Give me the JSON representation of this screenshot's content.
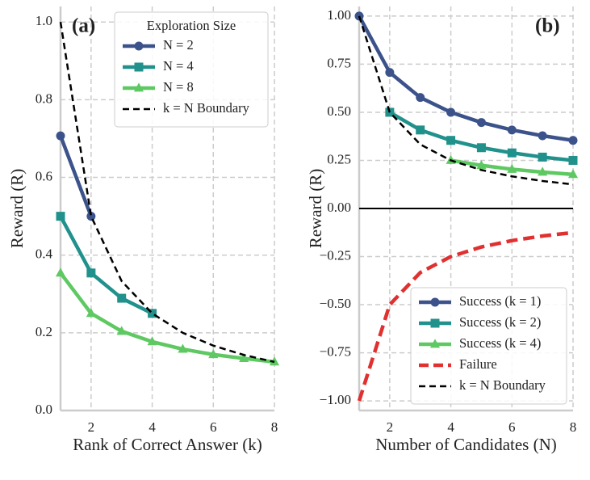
{
  "chart_data": [
    {
      "type": "line",
      "title": "(a)",
      "xlabel": "Rank of Correct Answer (k)",
      "ylabel": "Reward (R)",
      "x": [
        1,
        2,
        3,
        4,
        5,
        6,
        7,
        8
      ],
      "xlim": [
        1,
        8
      ],
      "xticks": [
        2,
        4,
        6,
        8
      ],
      "ylim": [
        0,
        1.04
      ],
      "yticks": [
        {
          "value": 0,
          "label": "0.0"
        },
        0.2,
        0.4,
        0.6,
        0.8,
        {
          "value": 1,
          "label": "1.0"
        }
      ],
      "grid": true,
      "legend": "upper right",
      "legend_title": "Exploration Size",
      "series": [
        {
          "name": "N = 2",
          "color": "#3b528b",
          "marker": "circle",
          "dashed": false,
          "values": [
            0.707,
            0.5,
            null,
            null,
            null,
            null,
            null,
            null
          ]
        },
        {
          "name": "N = 4",
          "color": "#21918c",
          "marker": "square",
          "dashed": false,
          "values": [
            0.5,
            0.354,
            0.289,
            0.25,
            null,
            null,
            null,
            null
          ]
        },
        {
          "name": "N = 8",
          "color": "#5ec962",
          "marker": "triangle",
          "dashed": false,
          "values": [
            0.354,
            0.25,
            0.204,
            0.177,
            0.158,
            0.144,
            0.134,
            0.125
          ]
        },
        {
          "name": "k = N Boundary",
          "color": "#000000",
          "marker": null,
          "dashed": true,
          "values": [
            1,
            0.5,
            0.333,
            0.25,
            0.2,
            0.167,
            0.143,
            0.125
          ]
        }
      ]
    },
    {
      "type": "line",
      "title": "(b)",
      "xlabel": "Number of Candidates (N)",
      "ylabel": "Reward (R)",
      "x": [
        1,
        2,
        3,
        4,
        5,
        6,
        7,
        8
      ],
      "xlim": [
        1,
        8
      ],
      "xticks": [
        2,
        4,
        6,
        8
      ],
      "ylim": [
        -1.05,
        1.05
      ],
      "yticks": [
        {
          "value": -1,
          "label": "−1.00"
        },
        {
          "value": -0.75,
          "label": "−0.75"
        },
        {
          "value": -0.5,
          "label": "−0.50"
        },
        {
          "value": -0.25,
          "label": "−0.25"
        },
        {
          "value": 0,
          "label": "0.00"
        },
        0.25,
        {
          "value": 0.5,
          "label": "0.50"
        },
        0.75,
        {
          "value": 1,
          "label": "1.00"
        }
      ],
      "grid": true,
      "legend": "lower right",
      "zero_line": true,
      "series": [
        {
          "name": "Success (k = 1)",
          "color": "#3b528b",
          "marker": "circle",
          "dashed": false,
          "values": [
            1,
            0.707,
            0.577,
            0.5,
            0.447,
            0.408,
            0.378,
            0.354
          ]
        },
        {
          "name": "Success (k = 2)",
          "color": "#21918c",
          "marker": "square",
          "dashed": false,
          "values": [
            null,
            0.5,
            0.408,
            0.354,
            0.316,
            0.289,
            0.267,
            0.25
          ]
        },
        {
          "name": "Success (k = 4)",
          "color": "#5ec962",
          "marker": "triangle",
          "dashed": false,
          "values": [
            null,
            null,
            null,
            0.25,
            0.224,
            0.204,
            0.189,
            0.177
          ]
        },
        {
          "name": "Failure",
          "color": "#e03030",
          "marker": null,
          "dashed": true,
          "values": [
            -1,
            -0.5,
            -0.333,
            -0.25,
            -0.2,
            -0.167,
            -0.143,
            -0.125
          ]
        },
        {
          "name": "k = N Boundary",
          "color": "#000000",
          "marker": null,
          "dashed": true,
          "values": [
            1,
            0.5,
            0.333,
            0.25,
            0.2,
            0.167,
            0.143,
            0.125
          ]
        }
      ]
    }
  ]
}
